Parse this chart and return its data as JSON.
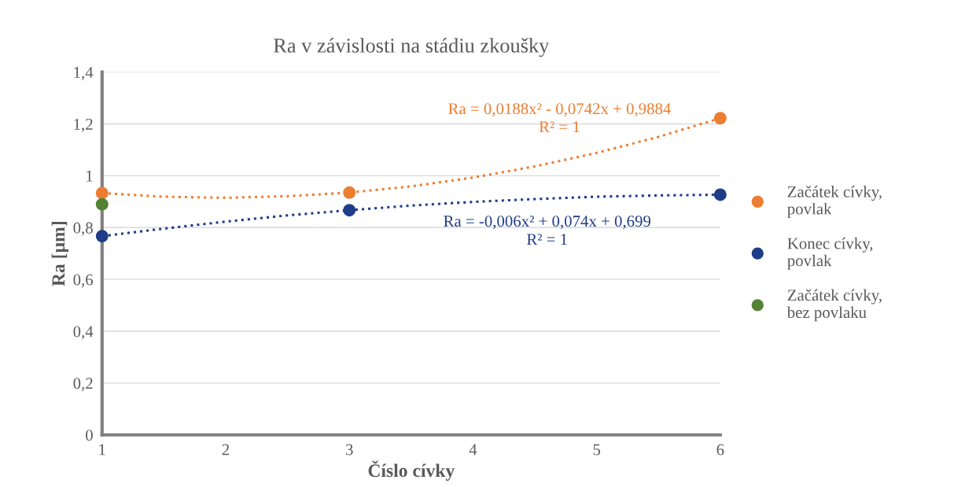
{
  "chart_data": {
    "type": "scatter",
    "title": "Ra v závislosti na stádiu zkoušky",
    "xlabel": "Číslo cívky",
    "ylabel": "Ra [µm]",
    "xlim": [
      1,
      6
    ],
    "xticks": [
      1,
      2,
      3,
      4,
      5,
      6
    ],
    "ylim": [
      0,
      1.4
    ],
    "yticks": [
      0,
      {
        "value": 0.2,
        "label": "0,2"
      },
      {
        "value": 0.4,
        "label": "0,4"
      },
      {
        "value": 0.6,
        "label": "0,6"
      },
      {
        "value": 0.8,
        "label": "0,8"
      },
      1,
      {
        "value": 1.2,
        "label": "1,2"
      },
      {
        "value": 1.4,
        "label": "1,4"
      }
    ],
    "grid": "y",
    "legend": "right",
    "marker": "circle",
    "series": [
      {
        "name": "Začátek cívky, povlak",
        "color": "#ed7d31",
        "x": [
          1,
          3,
          6
        ],
        "values": [
          0.933,
          0.935,
          1.222
        ]
      },
      {
        "name": "Konec cívky, povlak",
        "color": "#1f3c88",
        "x": [
          1,
          3,
          6
        ],
        "values": [
          0.767,
          0.867,
          0.927
        ]
      },
      {
        "name": "Začátek cívky, bez povlaku",
        "color": "#548235",
        "x": [
          1
        ],
        "values": [
          0.89
        ]
      },
      {
        "type": "line",
        "line_style": "dotted",
        "marker": "none",
        "color": "#ed7d31",
        "x": [
          1,
          1.5,
          2,
          2.5,
          3,
          3.5,
          4,
          4.5,
          5,
          5.5,
          6
        ],
        "values": [
          0.933,
          0.919,
          0.915,
          0.921,
          0.935,
          0.959,
          0.993,
          1.036,
          1.088,
          1.15,
          1.222
        ]
      },
      {
        "type": "line",
        "line_style": "dotted",
        "marker": "none",
        "color": "#1f3c88",
        "x": [
          1,
          1.5,
          2,
          2.5,
          3,
          3.5,
          4,
          4.5,
          5,
          5.5,
          6
        ],
        "values": [
          0.767,
          0.796,
          0.823,
          0.847,
          0.867,
          0.885,
          0.899,
          0.91,
          0.919,
          0.924,
          0.927
        ]
      }
    ],
    "annotations": [
      "Ra = 0,0188x² - 0,0742x + 0,9884",
      "R² = 1",
      "Ra = -0,006x² + 0,074x + 0,699",
      "R² = 1"
    ]
  }
}
